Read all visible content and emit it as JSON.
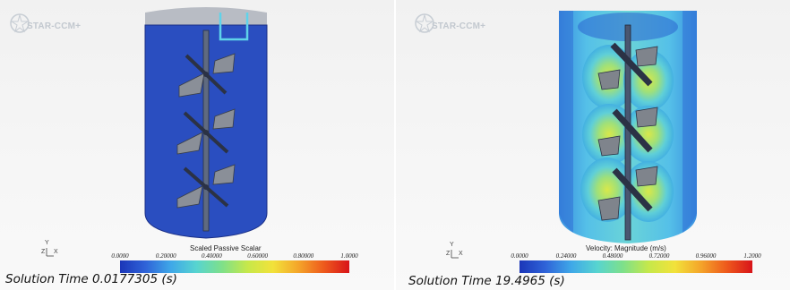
{
  "logo_text": "STAR-CCM+",
  "left": {
    "colorbar_title": "Scaled Passive Scalar",
    "colorbar_ticks": [
      "0.0000",
      "0.20000",
      "0.40000",
      "0.60000",
      "0.80000",
      "1.0000"
    ],
    "solution_time": "Solution Time 0.0177305 (s)",
    "fluid_color": "#2a4ec0"
  },
  "right": {
    "colorbar_title": "Velocity: Magnitude (m/s)",
    "colorbar_ticks": [
      "0.0000",
      "0.24000",
      "0.48000",
      "0.72000",
      "0.96000",
      "1.2000"
    ],
    "solution_time": "Solution Time 19.4965 (s)"
  },
  "axis_labels": {
    "y": "Y",
    "z": "Z",
    "x": "X"
  },
  "colormap": [
    "#1b36b8",
    "#2f63d8",
    "#3fa8e8",
    "#57d4d0",
    "#7ee08a",
    "#c6e84a",
    "#f2e23a",
    "#f4a52a",
    "#ee5a1c",
    "#d8141a"
  ]
}
